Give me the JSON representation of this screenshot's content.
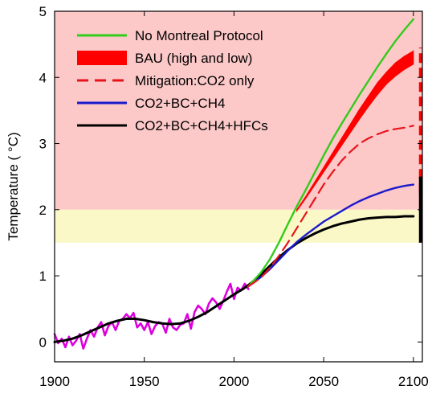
{
  "chart_data": {
    "type": "line",
    "xlim": [
      1900,
      2105
    ],
    "ylim": [
      -0.3,
      5
    ],
    "x_ticks": [
      1900,
      1950,
      2000,
      2050,
      2100
    ],
    "y_ticks": [
      0,
      1,
      2,
      3,
      4,
      5
    ],
    "ylabel": "Temperature ( °C)",
    "xlabel": "",
    "bands": [
      {
        "from": 2.0,
        "to": 5.0,
        "color": "#fcc8c8"
      },
      {
        "from": 1.5,
        "to": 2.0,
        "color": "#fbf8c8"
      }
    ],
    "legend": {
      "placement": "top-left",
      "entries": [
        {
          "label": "No Montreal Protocol",
          "color": "#33cc1a",
          "style": "solid"
        },
        {
          "label": "BAU (high and low)",
          "color": "#ff0000",
          "style": "thick"
        },
        {
          "label": "Mitigation:CO2 only",
          "color": "#e8141c",
          "style": "dashed"
        },
        {
          "label": "CO2+BC+CH4",
          "color": "#1a1acc",
          "style": "solid"
        },
        {
          "label": "CO2+BC+CH4+HFCs",
          "color": "#000000",
          "style": "solid"
        }
      ]
    },
    "series": [
      {
        "color": "#dd00dd",
        "style": "observed",
        "x": [
          1900,
          1902,
          1904,
          1906,
          1908,
          1910,
          1912,
          1914,
          1916,
          1918,
          1920,
          1922,
          1924,
          1926,
          1928,
          1930,
          1932,
          1934,
          1936,
          1938,
          1940,
          1942,
          1944,
          1946,
          1948,
          1950,
          1952,
          1954,
          1956,
          1958,
          1960,
          1962,
          1964,
          1966,
          1968,
          1970,
          1972,
          1974,
          1976,
          1978,
          1980,
          1982,
          1984,
          1986,
          1988,
          1990,
          1992,
          1994,
          1996,
          1998,
          2000,
          2002,
          2004,
          2006,
          2008
        ],
        "values": [
          0.12,
          -0.02,
          0.05,
          -0.08,
          0.08,
          -0.05,
          0.02,
          0.12,
          -0.1,
          0.05,
          0.18,
          0.08,
          0.22,
          0.3,
          0.1,
          0.24,
          0.3,
          0.18,
          0.32,
          0.35,
          0.42,
          0.36,
          0.44,
          0.22,
          0.28,
          0.18,
          0.3,
          0.12,
          0.24,
          0.3,
          0.28,
          0.14,
          0.35,
          0.22,
          0.18,
          0.26,
          0.28,
          0.42,
          0.2,
          0.45,
          0.55,
          0.5,
          0.42,
          0.58,
          0.66,
          0.6,
          0.5,
          0.62,
          0.76,
          0.88,
          0.65,
          0.82,
          0.78,
          0.88,
          0.8
        ]
      },
      {
        "color": "#000000",
        "style": "solid",
        "x": [
          1900,
          1905,
          1910,
          1915,
          1920,
          1925,
          1930,
          1935,
          1940,
          1945,
          1950,
          1955,
          1960,
          1965,
          1970,
          1975,
          1980,
          1985,
          1990,
          1995,
          2000,
          2005,
          2010,
          2015,
          2020,
          2025,
          2030,
          2035,
          2040,
          2045,
          2050,
          2055,
          2060,
          2065,
          2070,
          2075,
          2080,
          2085,
          2090,
          2095,
          2100
        ],
        "values": [
          0.0,
          0.02,
          0.05,
          0.1,
          0.16,
          0.22,
          0.28,
          0.32,
          0.35,
          0.35,
          0.33,
          0.3,
          0.28,
          0.27,
          0.28,
          0.32,
          0.38,
          0.45,
          0.54,
          0.63,
          0.72,
          0.8,
          0.9,
          1.02,
          1.15,
          1.28,
          1.39,
          1.49,
          1.57,
          1.64,
          1.7,
          1.75,
          1.79,
          1.82,
          1.85,
          1.87,
          1.88,
          1.89,
          1.89,
          1.9,
          1.9
        ]
      },
      {
        "color": "#1a1acc",
        "style": "solid",
        "x": [
          2008,
          2015,
          2020,
          2025,
          2030,
          2035,
          2040,
          2045,
          2050,
          2055,
          2060,
          2065,
          2070,
          2075,
          2080,
          2085,
          2090,
          2095,
          2100
        ],
        "values": [
          0.84,
          0.98,
          1.1,
          1.24,
          1.38,
          1.51,
          1.62,
          1.72,
          1.82,
          1.9,
          1.98,
          2.06,
          2.13,
          2.19,
          2.24,
          2.29,
          2.33,
          2.36,
          2.38
        ]
      },
      {
        "color": "#33cc1a",
        "style": "solid",
        "x": [
          2008,
          2015,
          2020,
          2025,
          2030,
          2035,
          2040,
          2045,
          2050,
          2055,
          2060,
          2065,
          2070,
          2075,
          2080,
          2085,
          2090,
          2095,
          2100
        ],
        "values": [
          0.84,
          1.05,
          1.25,
          1.5,
          1.78,
          2.05,
          2.3,
          2.56,
          2.82,
          3.07,
          3.3,
          3.52,
          3.74,
          3.95,
          4.16,
          4.36,
          4.55,
          4.72,
          4.88
        ]
      },
      {
        "color": "#ff0000",
        "style": "band",
        "x": [
          2035,
          2040,
          2045,
          2050,
          2055,
          2060,
          2065,
          2070,
          2075,
          2080,
          2085,
          2090,
          2095,
          2100
        ],
        "values_high": [
          2.0,
          2.2,
          2.42,
          2.64,
          2.86,
          3.08,
          3.3,
          3.52,
          3.72,
          3.92,
          4.08,
          4.22,
          4.32,
          4.4
        ],
        "values_low": [
          1.98,
          2.17,
          2.37,
          2.57,
          2.77,
          2.97,
          3.17,
          3.37,
          3.56,
          3.74,
          3.9,
          4.02,
          4.12,
          4.2
        ]
      },
      {
        "color": "#e8141c",
        "style": "dashed",
        "x": [
          2008,
          2015,
          2020,
          2025,
          2030,
          2035,
          2040,
          2045,
          2050,
          2055,
          2060,
          2065,
          2070,
          2075,
          2080,
          2085,
          2090,
          2095,
          2100
        ],
        "values": [
          0.84,
          0.97,
          1.12,
          1.3,
          1.5,
          1.72,
          1.94,
          2.16,
          2.38,
          2.57,
          2.74,
          2.88,
          3.0,
          3.08,
          3.14,
          3.19,
          3.22,
          3.24,
          3.27
        ]
      }
    ],
    "end_bars": [
      {
        "x": 2104,
        "from": 2.25,
        "to": 4.45,
        "color": "#ff0000",
        "style": "dashed"
      },
      {
        "x": 2104,
        "from": 1.5,
        "to": 2.5,
        "color": "#000000",
        "style": "solid"
      }
    ]
  }
}
